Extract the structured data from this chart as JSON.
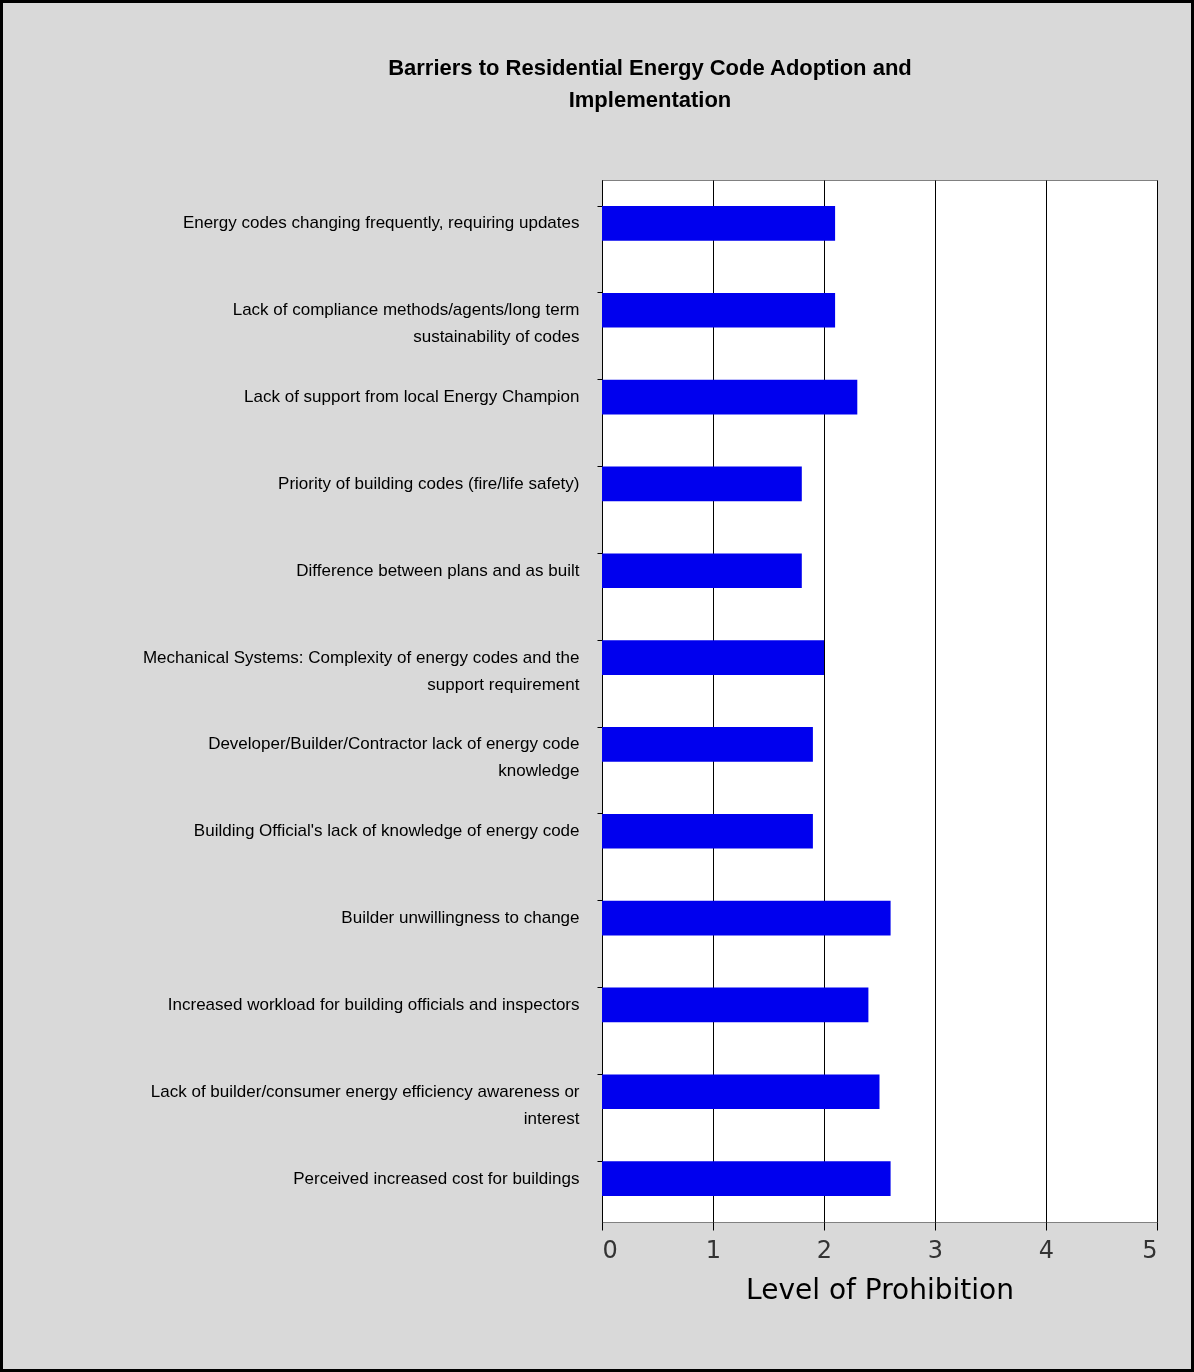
{
  "chart_data": {
    "type": "bar",
    "orientation": "horizontal",
    "title": "Barriers to Residential Energy Code Adoption and Implementation",
    "categories": [
      "Energy codes changing frequently, requiring updates",
      "Lack of compliance methods/agents/long term sustainability of codes",
      "Lack of support from local Energy Champion",
      "Priority of building codes (fire/life safety)",
      "Difference between plans and as built",
      "Mechanical Systems: Complexity of energy codes and the support requirement",
      "Developer/Builder/Contractor lack of energy code knowledge",
      "Building Official's lack of knowledge of energy code",
      "Builder unwillingness to change",
      "Increased workload for building officials and inspectors",
      "Lack of builder/consumer energy efficiency awareness or interest",
      "Perceived increased cost for buildings"
    ],
    "values": [
      2.1,
      2.1,
      2.3,
      1.8,
      1.8,
      2.0,
      1.9,
      1.9,
      2.6,
      2.4,
      2.5,
      2.6
    ],
    "color": "#0000ee",
    "xlabel": "Level of Prohibition",
    "xlim": [
      0,
      5
    ],
    "xticks": [
      0,
      1,
      2,
      3,
      4,
      5
    ],
    "grid": "x"
  }
}
